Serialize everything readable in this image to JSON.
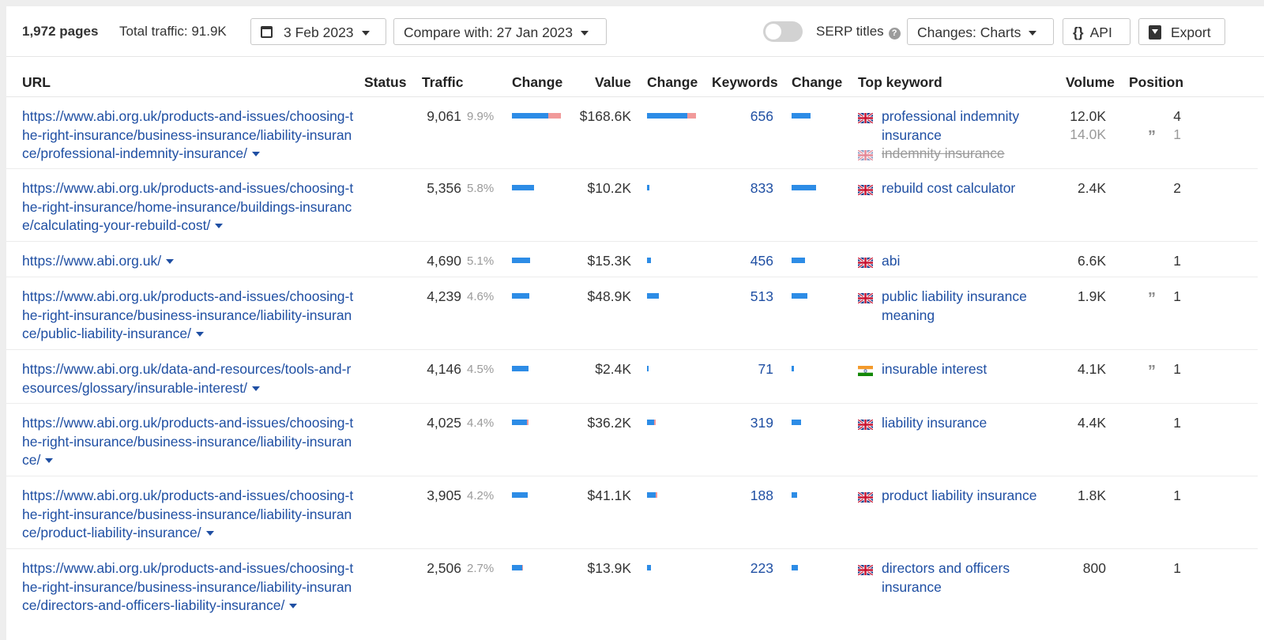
{
  "toolbar": {
    "pages": "1,972 pages",
    "total_traffic": "Total traffic: 91.9K",
    "date": "3 Feb 2023",
    "compare": "Compare with: 27 Jan 2023",
    "serp_titles": "SERP titles",
    "serp_toggle_on": false,
    "changes": "Changes: Charts",
    "api": "API",
    "export": "Export"
  },
  "columns": {
    "url": "URL",
    "status": "Status",
    "traffic": "Traffic",
    "traffic_change": "Change",
    "value": "Value",
    "value_change": "Change",
    "keywords": "Keywords",
    "keywords_change": "Change",
    "top_keyword": "Top keyword",
    "volume": "Volume",
    "position": "Position"
  },
  "colors": {
    "link": "#1f4fa3",
    "bar_positive": "#2d8ce6",
    "bar_negative": "#f19a9a"
  },
  "rows": [
    {
      "url": "https://www.abi.org.uk/products-and-issues/choosing-the-right-insurance/business-insurance/liability-insurance/professional-indemnity-insurance/",
      "traffic": "9,061",
      "traffic_pct": "9.9%",
      "traffic_change": {
        "pos": 0.74,
        "neg": 0.26
      },
      "value": "$168.6K",
      "value_change": {
        "pos": 0.83,
        "neg": 0.17
      },
      "keywords": "656",
      "keywords_change": {
        "pos": 1.0,
        "neg": 0
      },
      "top_keyword": "professional indemnity insurance",
      "flag": "uk-flag",
      "volume": "12.0K",
      "position": "4",
      "prev_keyword": "indemnity insurance",
      "prev_volume": "14.0K",
      "prev_position": "1",
      "prev_quote": true
    },
    {
      "url": "https://www.abi.org.uk/products-and-issues/choosing-the-right-insurance/home-insurance/buildings-insurance/calculating-your-rebuild-cost/",
      "traffic": "5,356",
      "traffic_pct": "5.8%",
      "traffic_change": {
        "pos": 1.0,
        "neg": 0
      },
      "value": "$10.2K",
      "value_change": {
        "pos": 1.0,
        "neg": 0
      },
      "keywords": "833",
      "keywords_change": {
        "pos": 1.0,
        "neg": 0
      },
      "top_keyword": "rebuild cost calculator",
      "flag": "uk-flag",
      "volume": "2.4K",
      "position": "2"
    },
    {
      "url": "https://www.abi.org.uk/",
      "traffic": "4,690",
      "traffic_pct": "5.1%",
      "traffic_change": {
        "pos": 1.0,
        "neg": 0
      },
      "value": "$15.3K",
      "value_change": {
        "pos": 1.0,
        "neg": 0
      },
      "keywords": "456",
      "keywords_change": {
        "pos": 1.0,
        "neg": 0
      },
      "top_keyword": "abi",
      "flag": "uk-flag",
      "volume": "6.6K",
      "position": "1"
    },
    {
      "url": "https://www.abi.org.uk/products-and-issues/choosing-the-right-insurance/business-insurance/liability-insurance/public-liability-insurance/",
      "traffic": "4,239",
      "traffic_pct": "4.6%",
      "traffic_change": {
        "pos": 1.0,
        "neg": 0
      },
      "value": "$48.9K",
      "value_change": {
        "pos": 1.0,
        "neg": 0
      },
      "keywords": "513",
      "keywords_change": {
        "pos": 1.0,
        "neg": 0
      },
      "top_keyword": "public liability insurance meaning",
      "flag": "uk-flag",
      "volume": "1.9K",
      "position": "1",
      "quote": true
    },
    {
      "url": "https://www.abi.org.uk/data-and-resources/tools-and-resources/glossary/insurable-interest/",
      "traffic": "4,146",
      "traffic_pct": "4.5%",
      "traffic_change": {
        "pos": 1.0,
        "neg": 0
      },
      "value": "$2.4K",
      "value_change": {
        "pos": 1.0,
        "neg": 0
      },
      "keywords": "71",
      "keywords_change": {
        "pos": 1.0,
        "neg": 0
      },
      "top_keyword": "insurable interest",
      "flag": "india-flag",
      "volume": "4.1K",
      "position": "1",
      "quote": true
    },
    {
      "url": "https://www.abi.org.uk/products-and-issues/choosing-the-right-insurance/business-insurance/liability-insurance/",
      "traffic": "4,025",
      "traffic_pct": "4.4%",
      "traffic_change": {
        "pos": 0.9,
        "neg": 0.1
      },
      "value": "$36.2K",
      "value_change": {
        "pos": 0.8,
        "neg": 0.2
      },
      "keywords": "319",
      "keywords_change": {
        "pos": 1.0,
        "neg": 0
      },
      "top_keyword": "liability insurance",
      "flag": "uk-flag",
      "volume": "4.4K",
      "position": "1"
    },
    {
      "url": "https://www.abi.org.uk/products-and-issues/choosing-the-right-insurance/business-insurance/liability-insurance/product-liability-insurance/",
      "traffic": "3,905",
      "traffic_pct": "4.2%",
      "traffic_change": {
        "pos": 1.0,
        "neg": 0
      },
      "value": "$41.1K",
      "value_change": {
        "pos": 0.85,
        "neg": 0.15
      },
      "keywords": "188",
      "keywords_change": {
        "pos": 1.0,
        "neg": 0
      },
      "top_keyword": "product liability insurance",
      "flag": "uk-flag",
      "volume": "1.8K",
      "position": "1"
    },
    {
      "url": "https://www.abi.org.uk/products-and-issues/choosing-the-right-insurance/business-insurance/liability-insurance/directors-and-officers-liability-insurance/",
      "traffic": "2,506",
      "traffic_pct": "2.7%",
      "traffic_change": {
        "pos": 0.9,
        "neg": 0.1
      },
      "value": "$13.9K",
      "value_change": {
        "pos": 1.0,
        "neg": 0
      },
      "keywords": "223",
      "keywords_change": {
        "pos": 1.0,
        "neg": 0
      },
      "top_keyword": "directors and officers insurance",
      "flag": "uk-flag",
      "volume": "800",
      "position": "1"
    }
  ]
}
